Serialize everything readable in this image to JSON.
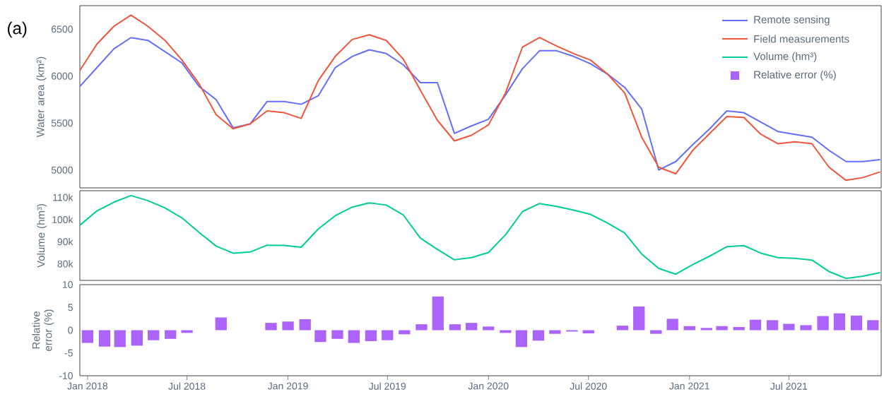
{
  "chart_data": [
    {
      "type": "line",
      "annotations": [
        "(a)"
      ],
      "ylabel": "Water area (km²)",
      "legend": "top right",
      "tick_labels": "y",
      "x": [
        "2017-12-18",
        "2018-01-18",
        "2018-02-18",
        "2018-03-21",
        "2018-04-21",
        "2018-05-22",
        "2018-06-22",
        "2018-07-23",
        "2018-08-23",
        "2018-09-23",
        "2018-10-24",
        "2018-11-24",
        "2018-12-25",
        "2019-01-25",
        "2019-02-25",
        "2019-03-28",
        "2019-04-28",
        "2019-05-29",
        "2019-06-29",
        "2019-07-30",
        "2019-08-30",
        "2019-09-30",
        "2019-10-31",
        "2019-12-01",
        "2020-01-01",
        "2020-02-01",
        "2020-03-03",
        "2020-04-03",
        "2020-05-04",
        "2020-06-04",
        "2020-07-05",
        "2020-08-05",
        "2020-09-05",
        "2020-10-06",
        "2020-11-06",
        "2020-12-07",
        "2021-01-07",
        "2021-02-07",
        "2021-03-10",
        "2021-04-10",
        "2021-05-11",
        "2021-06-11",
        "2021-07-12",
        "2021-08-12",
        "2021-09-12",
        "2021-10-13",
        "2021-11-13",
        "2021-12-14"
      ],
      "xlim": [
        "2017-12-18",
        "2021-12-16"
      ],
      "ylim": [
        4810,
        6750
      ],
      "yticks": [
        5000,
        5500,
        6000,
        6500
      ],
      "series": [
        {
          "name": "Remote sensing",
          "color": "#636efa",
          "values": [
            5890,
            6090,
            6290,
            6410,
            6380,
            6260,
            6140,
            5890,
            5750,
            5450,
            5490,
            5730,
            5730,
            5700,
            5790,
            6090,
            6210,
            6280,
            6240,
            6120,
            5930,
            5930,
            5390,
            5470,
            5540,
            5800,
            6080,
            6270,
            6270,
            6210,
            6130,
            6020,
            5880,
            5650,
            5000,
            5090,
            5270,
            5440,
            5630,
            5610,
            5510,
            5410,
            5380,
            5350,
            5210,
            5090,
            5090,
            5110
          ]
        },
        {
          "name": "Field measurements",
          "color": "#ef553b",
          "values": [
            6060,
            6340,
            6530,
            6650,
            6530,
            6380,
            6170,
            5920,
            5590,
            5440,
            5490,
            5630,
            5610,
            5550,
            5950,
            6210,
            6390,
            6440,
            6380,
            6180,
            5850,
            5530,
            5310,
            5370,
            5480,
            5820,
            6310,
            6410,
            6320,
            6240,
            6170,
            6020,
            5820,
            5350,
            5030,
            4960,
            5210,
            5390,
            5570,
            5560,
            5380,
            5280,
            5300,
            5280,
            5030,
            4890,
            4920,
            4980
          ]
        }
      ]
    },
    {
      "type": "line",
      "ylabel": "Volume (hm³)",
      "tick_labels": "y",
      "x": [
        "2017-12-18",
        "2018-01-18",
        "2018-02-18",
        "2018-03-21",
        "2018-04-21",
        "2018-05-22",
        "2018-06-22",
        "2018-07-23",
        "2018-08-23",
        "2018-09-23",
        "2018-10-24",
        "2018-11-24",
        "2018-12-25",
        "2019-01-25",
        "2019-02-25",
        "2019-03-28",
        "2019-04-28",
        "2019-05-29",
        "2019-06-29",
        "2019-07-30",
        "2019-08-30",
        "2019-09-30",
        "2019-10-31",
        "2019-12-01",
        "2020-01-01",
        "2020-02-01",
        "2020-03-03",
        "2020-04-03",
        "2020-05-04",
        "2020-06-04",
        "2020-07-05",
        "2020-08-05",
        "2020-09-05",
        "2020-10-06",
        "2020-11-06",
        "2020-12-07",
        "2021-01-07",
        "2021-02-07",
        "2021-03-10",
        "2021-04-10",
        "2021-05-11",
        "2021-06-11",
        "2021-07-12",
        "2021-08-12",
        "2021-09-12",
        "2021-10-13",
        "2021-11-13",
        "2021-12-14"
      ],
      "xlim": [
        "2017-12-18",
        "2021-12-16"
      ],
      "ylim": [
        72500,
        113000
      ],
      "yticks": [
        {
          "value": 80000,
          "label": "80k"
        },
        {
          "value": 90000,
          "label": "90k"
        },
        {
          "value": 100000,
          "label": "100k"
        },
        {
          "value": 110000,
          "label": "110k"
        }
      ],
      "series": [
        {
          "name": "Volume (hm³)",
          "color": "#00cc96",
          "values": [
            97400,
            103900,
            107800,
            110800,
            108500,
            105200,
            100700,
            94200,
            88000,
            84800,
            85300,
            88400,
            88300,
            87500,
            95700,
            101700,
            105600,
            107500,
            106500,
            102000,
            91600,
            86500,
            81800,
            82800,
            85100,
            93100,
            103600,
            107200,
            105900,
            104200,
            102300,
            98400,
            93900,
            84400,
            77900,
            75300,
            79600,
            83500,
            87700,
            88200,
            84800,
            82800,
            82500,
            81700,
            76500,
            73400,
            74400,
            76000
          ]
        }
      ]
    },
    {
      "type": "bar",
      "ylabel": "Relative error (%)",
      "x": [
        "2018-01",
        "2018-02",
        "2018-03",
        "2018-04",
        "2018-05",
        "2018-06",
        "2018-07",
        "2018-08",
        "2018-09",
        "2018-10",
        "2018-11",
        "2018-12",
        "2019-01",
        "2019-02",
        "2019-03",
        "2019-04",
        "2019-05",
        "2019-06",
        "2019-07",
        "2019-08",
        "2019-09",
        "2019-10",
        "2019-11",
        "2019-12",
        "2020-01",
        "2020-02",
        "2020-03",
        "2020-04",
        "2020-05",
        "2020-06",
        "2020-07",
        "2020-08",
        "2020-09",
        "2020-10",
        "2020-11",
        "2020-12",
        "2021-01",
        "2021-02",
        "2021-03",
        "2021-04",
        "2021-05",
        "2021-06",
        "2021-07",
        "2021-08",
        "2021-09",
        "2021-10",
        "2021-11",
        "2021-12"
      ],
      "xlim": [
        "2017-12-18",
        "2021-12-16"
      ],
      "xticks": [
        {
          "value": "2018-01-01",
          "label": "Jan 2018"
        },
        {
          "value": "2018-07-01",
          "label": "Jul 2018"
        },
        {
          "value": "2019-01-01",
          "label": "Jan 2019"
        },
        {
          "value": "2019-07-01",
          "label": "Jul 2019"
        },
        {
          "value": "2020-01-01",
          "label": "Jan 2020"
        },
        {
          "value": "2020-07-01",
          "label": "Jul 2020"
        },
        {
          "value": "2021-01-01",
          "label": "Jan 2021"
        },
        {
          "value": "2021-07-01",
          "label": "Jul 2021"
        }
      ],
      "ylim": [
        -10,
        10
      ],
      "yticks": [
        -10,
        -5,
        0,
        5,
        10
      ],
      "series": [
        {
          "name": "Relative error (%)",
          "color": "#ab63fa",
          "values": [
            -2.8,
            -3.6,
            -3.7,
            -3.4,
            -2.2,
            -1.9,
            -0.6,
            0,
            2.8,
            0,
            0,
            1.6,
            1.9,
            2.4,
            -2.6,
            -1.9,
            -2.8,
            -2.4,
            -2.2,
            -0.9,
            1.3,
            7.4,
            1.3,
            1.6,
            0.8,
            -0.6,
            -3.7,
            -2.3,
            -0.8,
            -0.3,
            -0.7,
            0,
            1.0,
            5.2,
            -0.8,
            2.5,
            0.9,
            0.5,
            0.9,
            0.7,
            2.3,
            2.2,
            1.4,
            1.1,
            3.1,
            3.7,
            3.2,
            2.2
          ]
        }
      ]
    }
  ]
}
